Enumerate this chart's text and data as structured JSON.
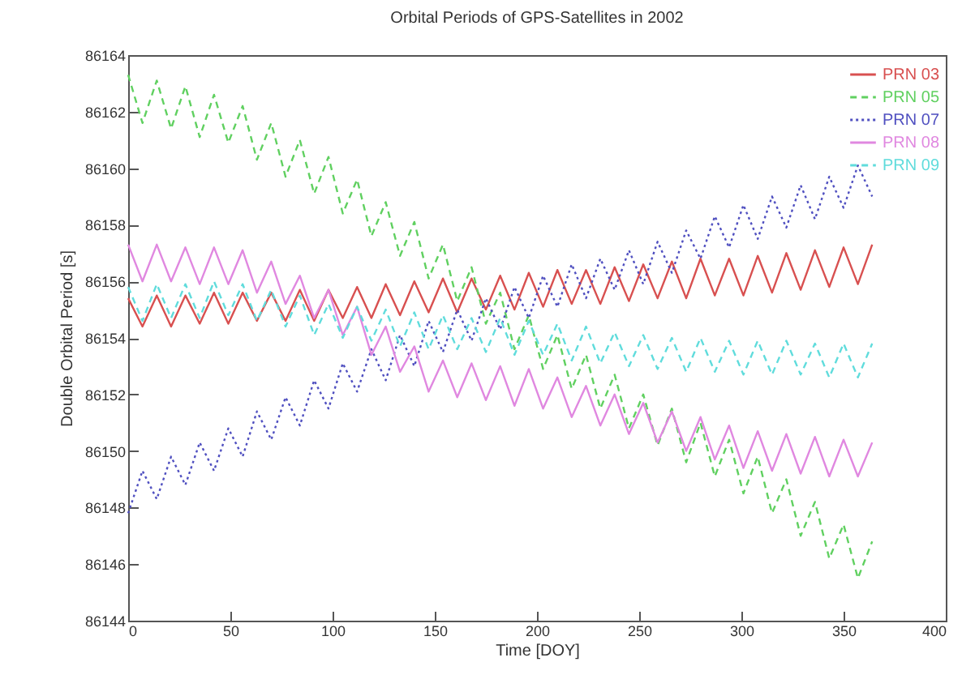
{
  "chart_data": {
    "type": "line",
    "title": "Orbital Periods of GPS-Satellites in 2002",
    "xlabel": "Time [DOY]",
    "ylabel": "Double Orbital Period [s]",
    "xlim": [
      0,
      400
    ],
    "xticks": [
      0,
      50,
      100,
      150,
      200,
      250,
      300,
      350,
      400
    ],
    "ylim": [
      86144,
      86164
    ],
    "yticks": [
      86144,
      86146,
      86148,
      86150,
      86152,
      86154,
      86156,
      86158,
      86160,
      86162,
      86164
    ],
    "grid": false,
    "legend": "top right",
    "x": [
      0,
      7,
      14,
      21,
      28,
      35,
      42,
      49,
      56,
      63,
      70,
      77,
      84,
      91,
      98,
      105,
      112,
      119,
      126,
      133,
      140,
      147,
      154,
      161,
      168,
      175,
      182,
      189,
      196,
      203,
      210,
      217,
      224,
      231,
      238,
      245,
      252,
      259,
      266,
      273,
      280,
      287,
      294,
      301,
      308,
      315,
      322,
      329,
      336,
      343,
      350,
      357,
      364
    ],
    "series": [
      {
        "name": "PRN 03",
        "color": "#d85050",
        "line_style": "solid",
        "values": [
          86155.4,
          86154.4,
          86155.5,
          86154.4,
          86155.5,
          86154.5,
          86155.6,
          86154.5,
          86155.6,
          86154.6,
          86155.6,
          86154.6,
          86155.7,
          86154.6,
          86155.7,
          86154.7,
          86155.8,
          86154.7,
          86155.9,
          86154.8,
          86156.0,
          86154.9,
          86156.1,
          86154.9,
          86156.1,
          86155.0,
          86156.2,
          86155.0,
          86156.3,
          86155.1,
          86156.4,
          86155.2,
          86156.4,
          86155.2,
          86156.5,
          86155.3,
          86156.6,
          86155.4,
          86156.7,
          86155.4,
          86156.8,
          86155.5,
          86156.8,
          86155.5,
          86156.9,
          86155.6,
          86157.0,
          86155.7,
          86157.1,
          86155.8,
          86157.2,
          86155.9,
          86157.3
        ]
      },
      {
        "name": "PRN 05",
        "color": "#60d060",
        "line_style": "dashed",
        "values": [
          86163.3,
          86161.6,
          86163.1,
          86161.4,
          86162.9,
          86161.1,
          86162.6,
          86160.9,
          86162.2,
          86160.3,
          86161.6,
          86159.7,
          86161.0,
          86159.1,
          86160.4,
          86158.4,
          86159.6,
          86157.6,
          86158.8,
          86156.9,
          86158.1,
          86156.1,
          86157.3,
          86155.3,
          86156.5,
          86154.5,
          86155.6,
          86153.6,
          86154.8,
          86152.9,
          86154.1,
          86152.2,
          86153.4,
          86151.5,
          86152.7,
          86150.8,
          86152.0,
          86150.2,
          86151.5,
          86149.6,
          86151.0,
          86149.1,
          86150.4,
          86148.5,
          86149.8,
          86147.8,
          86149.0,
          86147.0,
          86148.2,
          86146.2,
          86147.4,
          86145.5,
          86146.8
        ]
      },
      {
        "name": "PRN 07",
        "color": "#5050c0",
        "line_style": "dotted",
        "values": [
          86147.8,
          86149.3,
          86148.3,
          86149.8,
          86148.8,
          86150.3,
          86149.3,
          86150.8,
          86149.8,
          86151.4,
          86150.4,
          86151.9,
          86150.9,
          86152.5,
          86151.5,
          86153.1,
          86152.1,
          86153.6,
          86152.5,
          86154.1,
          86153.0,
          86154.6,
          86153.5,
          86155.0,
          86153.9,
          86155.4,
          86154.3,
          86155.8,
          86154.7,
          86156.2,
          86155.1,
          86156.6,
          86155.4,
          86156.8,
          86155.7,
          86157.1,
          86155.9,
          86157.4,
          86156.3,
          86157.8,
          86156.8,
          86158.3,
          86157.2,
          86158.7,
          86157.5,
          86159.0,
          86157.9,
          86159.4,
          86158.2,
          86159.7,
          86158.6,
          86160.1,
          86159.0
        ]
      },
      {
        "name": "PRN 08",
        "color": "#e088e0",
        "line_style": "solid",
        "values": [
          86157.3,
          86156.0,
          86157.3,
          86156.0,
          86157.2,
          86155.9,
          86157.2,
          86155.9,
          86157.1,
          86155.6,
          86156.7,
          86155.2,
          86156.2,
          86154.7,
          86155.7,
          86154.1,
          86155.1,
          86153.4,
          86154.4,
          86152.8,
          86153.7,
          86152.1,
          86153.2,
          86151.9,
          86153.1,
          86151.8,
          86153.0,
          86151.6,
          86152.9,
          86151.5,
          86152.6,
          86151.2,
          86152.3,
          86150.9,
          86152.0,
          86150.6,
          86151.7,
          86150.3,
          86151.4,
          86150.0,
          86151.2,
          86149.7,
          86150.9,
          86149.4,
          86150.7,
          86149.3,
          86150.6,
          86149.2,
          86150.5,
          86149.1,
          86150.4,
          86149.1,
          86150.3
        ]
      },
      {
        "name": "PRN 09",
        "color": "#60dcdc",
        "line_style": "dashed",
        "values": [
          86155.8,
          86154.6,
          86155.9,
          86154.7,
          86155.9,
          86154.7,
          86156.0,
          86154.8,
          86155.9,
          86154.6,
          86155.7,
          86154.4,
          86155.5,
          86154.1,
          86155.2,
          86154.0,
          86155.1,
          86153.9,
          86155.0,
          86153.7,
          86154.9,
          86153.6,
          86154.8,
          86153.6,
          86154.7,
          86153.5,
          86154.7,
          86153.4,
          86154.6,
          86153.4,
          86154.5,
          86153.2,
          86154.4,
          86153.1,
          86154.2,
          86153.0,
          86154.1,
          86152.9,
          86154.0,
          86152.8,
          86154.0,
          86152.8,
          86153.9,
          86152.7,
          86153.9,
          86152.7,
          86153.9,
          86152.7,
          86153.8,
          86152.6,
          86153.8,
          86152.6,
          86153.8
        ]
      }
    ]
  }
}
